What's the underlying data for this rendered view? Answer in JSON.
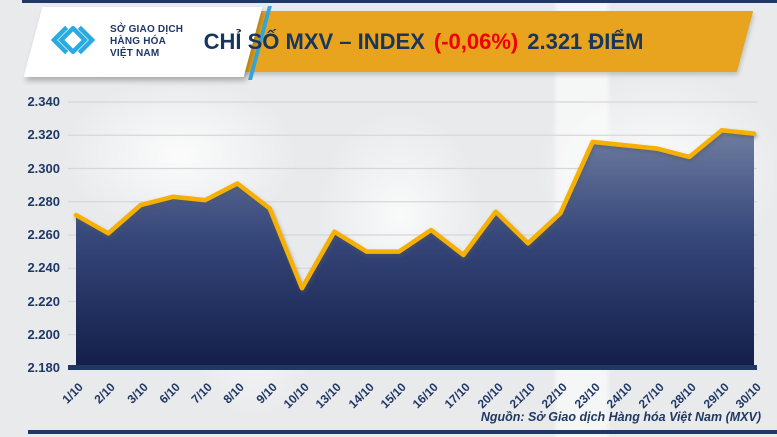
{
  "header": {
    "logo": {
      "lines": [
        "SỞ GIAO DỊCH",
        "HÀNG HÓA",
        "VIỆT NAM"
      ]
    },
    "banner": {
      "title_main": "CHỈ SỐ MXV – INDEX",
      "title_change": "(-0,06%)",
      "title_value": "2.321 ĐIỂM"
    }
  },
  "chart_data": {
    "type": "area",
    "title": "CHỈ SỐ MXV – INDEX (-0,06%) 2.321 ĐIỂM",
    "unit": "điểm",
    "categories": [
      "1/10",
      "2/10",
      "3/10",
      "6/10",
      "7/10",
      "8/10",
      "9/10",
      "10/10",
      "13/10",
      "14/10",
      "15/10",
      "16/10",
      "17/10",
      "20/10",
      "21/10",
      "22/10",
      "23/10",
      "24/10",
      "27/10",
      "28/10",
      "29/10",
      "30/10"
    ],
    "values": [
      2272,
      2261,
      2278,
      2283,
      2281,
      2291,
      2276,
      2228,
      2262,
      2250,
      2250,
      2263,
      2248,
      2274,
      2255,
      2273,
      2316,
      2314,
      2312,
      2307,
      2323,
      2321
    ],
    "last_value_display": "2.321",
    "change_display": "-0,06%",
    "ylim": [
      2180,
      2340
    ],
    "ytick_step": 20,
    "ytick_labels": [
      "2.340",
      "2.320",
      "2.300",
      "2.280",
      "2.260",
      "2.240",
      "2.220",
      "2.200",
      "2.180"
    ],
    "grid": "horizontal",
    "legend": "none",
    "line_color": "#f6b000",
    "fill_gradient_top": "#6f7da0",
    "fill_gradient_bottom": "#141f4a",
    "axis_color": "#1f3864"
  },
  "footer": {
    "source": "Nguồn: Sở Giao dịch Hàng hóa Việt Nam (MXV)"
  },
  "colors": {
    "banner_gold": "#e8a41e",
    "navy": "#1f3864",
    "title_navy": "#17365d",
    "red": "#f20000",
    "logo_cyan": "#29abe2",
    "background": "#e9eaec"
  }
}
